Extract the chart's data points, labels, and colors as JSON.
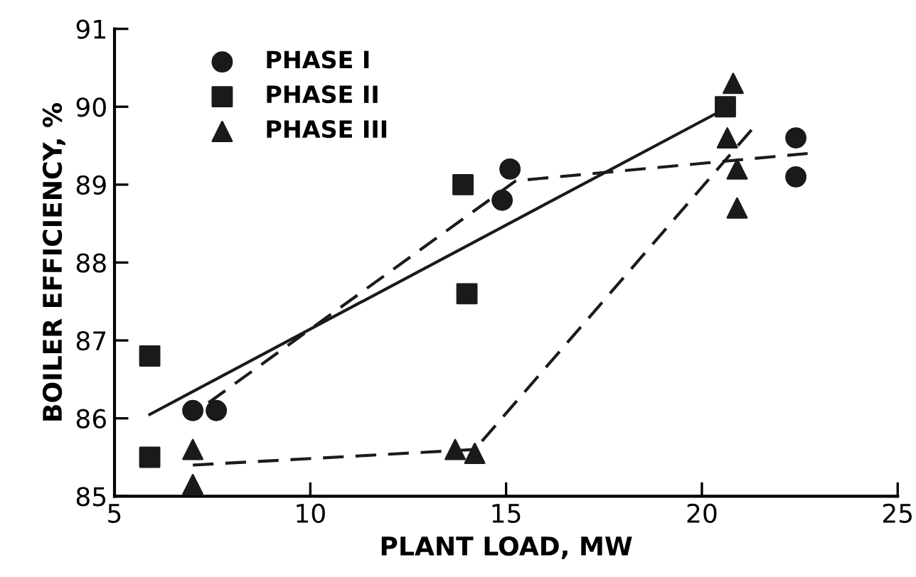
{
  "chart_data": {
    "type": "scatter",
    "xlabel": "PLANT LOAD, MW",
    "ylabel": "BOILER EFFICIENCY, %",
    "xlim": [
      5,
      25
    ],
    "xticks": [
      5,
      10,
      15,
      20,
      25
    ],
    "ylim": [
      85,
      91
    ],
    "yticks": [
      85,
      86,
      87,
      88,
      89,
      90,
      91
    ],
    "grid": false,
    "legend": "top left",
    "series": [
      {
        "name": "PHASE I",
        "color": "#1a1a1a",
        "marker": "circle",
        "x": [
          7.0,
          7.6,
          15.1,
          14.9,
          22.4,
          22.4
        ],
        "values": [
          86.1,
          86.1,
          89.2,
          88.8,
          89.6,
          89.1
        ]
      },
      {
        "name": "PHASE II",
        "color": "#1a1a1a",
        "marker": "square",
        "x": [
          5.9,
          5.9,
          13.9,
          14.0,
          20.6
        ],
        "values": [
          86.8,
          85.5,
          89.0,
          87.6,
          90.0
        ]
      },
      {
        "name": "PHASE III",
        "color": "#1a1a1a",
        "marker": "triangle",
        "x": [
          7.0,
          7.0,
          13.7,
          14.2,
          20.8,
          20.65,
          20.9,
          20.9
        ],
        "values": [
          85.6,
          85.15,
          85.6,
          85.55,
          90.3,
          89.6,
          89.2,
          88.7
        ]
      },
      {
        "type": "line",
        "color": "#1a1a1a",
        "line_style": "solid",
        "x": [
          5.9,
          20.5
        ],
        "values": [
          86.05,
          89.95
        ]
      },
      {
        "type": "line",
        "color": "#1a1a1a",
        "line_style": "dashed",
        "x": [
          7.4,
          15.25,
          22.7
        ],
        "values": [
          86.2,
          89.05,
          89.4
        ]
      },
      {
        "type": "line",
        "color": "#1a1a1a",
        "line_style": "dashed",
        "x": [
          7.0,
          14.2,
          21.35
        ],
        "values": [
          85.4,
          85.6,
          89.75
        ]
      }
    ]
  }
}
